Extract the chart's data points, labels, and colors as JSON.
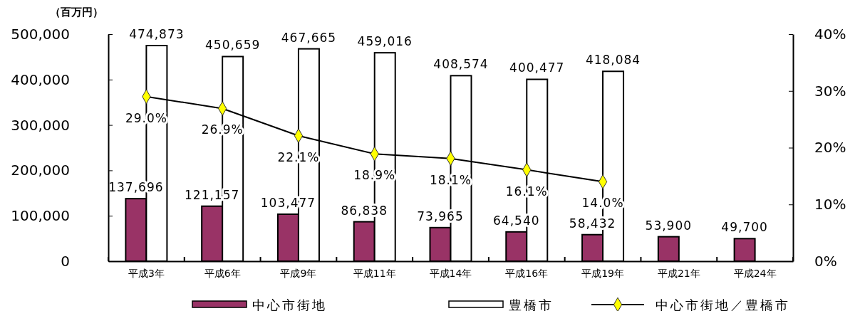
{
  "chart_data": {
    "type": "bar",
    "ylabel": "（百万円）",
    "categories": [
      "平成3年",
      "平成6年",
      "平成9年",
      "平成11年",
      "平成14年",
      "平成16年",
      "平成19年",
      "平成21年",
      "平成24年"
    ],
    "series": [
      {
        "name": "中心市街地",
        "color": "#993366",
        "values": [
          137696,
          121157,
          103477,
          86838,
          73965,
          64540,
          58432,
          53900,
          49700
        ],
        "value_labels": [
          "137,696",
          "121,157",
          "103,477",
          "86,838",
          "73,965",
          "64,540",
          "58,432",
          "53,900",
          "49,700"
        ]
      },
      {
        "name": "豊橋市",
        "color": "#ffffff",
        "values": [
          474873,
          450659,
          467665,
          459016,
          408574,
          400477,
          418084,
          null,
          null
        ],
        "value_labels": [
          "474,873",
          "450,659",
          "467,665",
          "459,016",
          "408,574",
          "400,477",
          "418,084",
          null,
          null
        ]
      },
      {
        "name": "中心市街地／豊橋市",
        "type": "line",
        "axis": "y2",
        "color": "#000000",
        "colors": [
          "#ffff00",
          "#ffff00",
          "#ffff00",
          "#ffff00",
          "#ffff00",
          "#ffff00",
          "#ffff00",
          null,
          null
        ],
        "marker": "diamond",
        "values": [
          29.0,
          26.9,
          22.1,
          18.9,
          18.1,
          16.1,
          14.0,
          null,
          null
        ],
        "value_labels": [
          "29.0%",
          "26.9%",
          "22.1%",
          "18.9%",
          "18.1%",
          "16.1%",
          "14.0%",
          null,
          null
        ]
      }
    ],
    "ylim": [
      0,
      500000
    ],
    "yticks": [
      {
        "value": 0,
        "label": "0"
      },
      {
        "value": 100000,
        "label": "100,000"
      },
      {
        "value": 200000,
        "label": "200,000"
      },
      {
        "value": 300000,
        "label": "300,000"
      },
      {
        "value": 400000,
        "label": "400,000"
      },
      {
        "value": 500000,
        "label": "500,000"
      }
    ],
    "y2lim": [
      0,
      40
    ],
    "y2ticks": [
      {
        "value": 0,
        "label": "0%"
      },
      {
        "value": 10,
        "label": "10%"
      },
      {
        "value": 20,
        "label": "20%"
      },
      {
        "value": 30,
        "label": "30%"
      },
      {
        "value": 40,
        "label": "40%"
      }
    ],
    "grid": false,
    "legend": "bottom"
  }
}
